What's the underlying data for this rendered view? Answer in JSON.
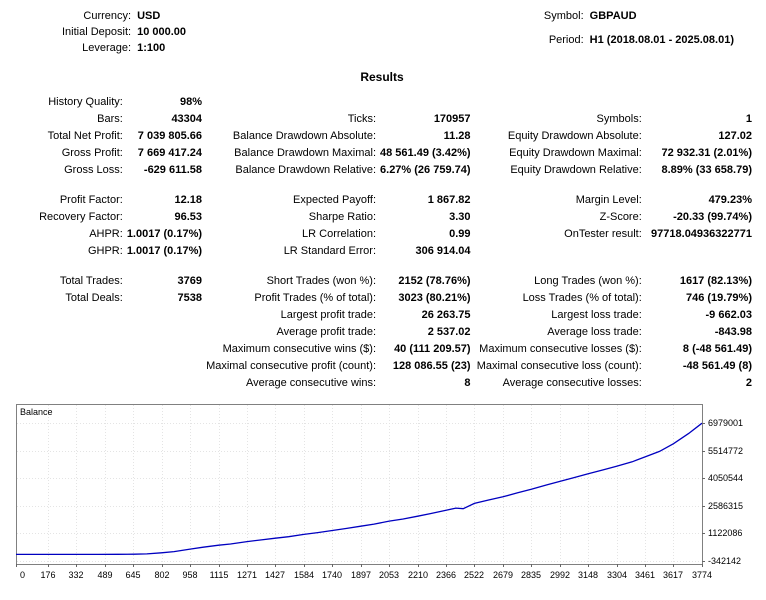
{
  "header": {
    "left": [
      {
        "label": "Currency:",
        "value": "USD"
      },
      {
        "label": "Initial Deposit:",
        "value": "10 000.00"
      },
      {
        "label": "Leverage:",
        "value": "1:100"
      }
    ],
    "right": [
      {
        "label": "Symbol:",
        "value": "GBPAUD"
      },
      {
        "label": "Period:",
        "value": "H1 (2018.08.01 - 2025.08.01)"
      }
    ]
  },
  "results": {
    "title": "Results",
    "rows": [
      [
        {
          "label": "History Quality:",
          "value": "98%"
        },
        null,
        null
      ],
      [
        {
          "label": "Bars:",
          "value": "43304"
        },
        {
          "label": "Ticks:",
          "value": "170957"
        },
        {
          "label": "Symbols:",
          "value": "1"
        }
      ],
      [
        {
          "label": "Total Net Profit:",
          "value": "7 039 805.66"
        },
        {
          "label": "Balance Drawdown Absolute:",
          "value": "11.28"
        },
        {
          "label": "Equity Drawdown Absolute:",
          "value": "127.02"
        }
      ],
      [
        {
          "label": "Gross Profit:",
          "value": "7 669 417.24"
        },
        {
          "label": "Balance Drawdown Maximal:",
          "value": "48 561.49 (3.42%)"
        },
        {
          "label": "Equity Drawdown Maximal:",
          "value": "72 932.31 (2.01%)"
        }
      ],
      [
        {
          "label": "Gross Loss:",
          "value": "-629 611.58"
        },
        {
          "label": "Balance Drawdown Relative:",
          "value": "6.27% (26 759.74)"
        },
        {
          "label": "Equity Drawdown Relative:",
          "value": "8.89% (33 658.79)"
        }
      ],
      "spacer",
      [
        {
          "label": "Profit Factor:",
          "value": "12.18"
        },
        {
          "label": "Expected Payoff:",
          "value": "1 867.82"
        },
        {
          "label": "Margin Level:",
          "value": "479.23%"
        }
      ],
      [
        {
          "label": "Recovery Factor:",
          "value": "96.53"
        },
        {
          "label": "Sharpe Ratio:",
          "value": "3.30"
        },
        {
          "label": "Z-Score:",
          "value": "-20.33 (99.74%)"
        }
      ],
      [
        {
          "label": "AHPR:",
          "value": "1.0017 (0.17%)"
        },
        {
          "label": "LR Correlation:",
          "value": "0.99"
        },
        {
          "label": "OnTester result:",
          "value": "97718.04936322771"
        }
      ],
      [
        {
          "label": "GHPR:",
          "value": "1.0017 (0.17%)"
        },
        {
          "label": "LR Standard Error:",
          "value": "306 914.04"
        },
        null
      ],
      "spacer",
      [
        {
          "label": "Total Trades:",
          "value": "3769"
        },
        {
          "label": "Short Trades (won %):",
          "value": "2152 (78.76%)"
        },
        {
          "label": "Long Trades (won %):",
          "value": "1617 (82.13%)"
        }
      ],
      [
        {
          "label": "Total Deals:",
          "value": "7538"
        },
        {
          "label": "Profit Trades (% of total):",
          "value": "3023 (80.21%)"
        },
        {
          "label": "Loss Trades (% of total):",
          "value": "746 (19.79%)"
        }
      ],
      [
        null,
        {
          "label": "Largest profit trade:",
          "value": "26 263.75"
        },
        {
          "label": "Largest loss trade:",
          "value": "-9 662.03"
        }
      ],
      [
        null,
        {
          "label": "Average profit trade:",
          "value": "2 537.02"
        },
        {
          "label": "Average loss trade:",
          "value": "-843.98"
        }
      ],
      [
        null,
        {
          "label": "Maximum consecutive wins ($):",
          "value": "40 (111 209.57)"
        },
        {
          "label": "Maximum consecutive losses ($):",
          "value": "8 (-48 561.49)"
        }
      ],
      [
        null,
        {
          "label": "Maximal consecutive profit (count):",
          "value": "128 086.55 (23)"
        },
        {
          "label": "Maximal consecutive loss (count):",
          "value": "-48 561.49 (8)"
        }
      ],
      [
        null,
        {
          "label": "Average consecutive wins:",
          "value": "8"
        },
        {
          "label": "Average consecutive losses:",
          "value": "2"
        }
      ]
    ]
  },
  "chart_data": {
    "type": "line",
    "title": "Balance",
    "line_color": "#0000C0",
    "x_range": [
      0,
      3774
    ],
    "y_range": [
      -500000,
      8000000
    ],
    "x_ticks": [
      0,
      176,
      332,
      489,
      645,
      802,
      958,
      1115,
      1271,
      1427,
      1584,
      1740,
      1897,
      2053,
      2210,
      2366,
      2522,
      2679,
      2835,
      2992,
      3148,
      3304,
      3461,
      3617,
      3774
    ],
    "y_ticks": [
      6979001,
      5514772,
      4050544,
      2586315,
      1122086,
      -342142
    ],
    "series": [
      {
        "name": "Balance",
        "points": [
          [
            0,
            10000
          ],
          [
            150,
            10000
          ],
          [
            300,
            10600
          ],
          [
            450,
            11500
          ],
          [
            560,
            13000
          ],
          [
            650,
            18000
          ],
          [
            720,
            35000
          ],
          [
            800,
            95000
          ],
          [
            870,
            160000
          ],
          [
            958,
            290000
          ],
          [
            1030,
            390000
          ],
          [
            1115,
            500000
          ],
          [
            1180,
            560000
          ],
          [
            1271,
            690000
          ],
          [
            1350,
            780000
          ],
          [
            1427,
            870000
          ],
          [
            1500,
            950000
          ],
          [
            1584,
            1070000
          ],
          [
            1660,
            1170000
          ],
          [
            1740,
            1280000
          ],
          [
            1820,
            1390000
          ],
          [
            1897,
            1510000
          ],
          [
            1970,
            1620000
          ],
          [
            2053,
            1780000
          ],
          [
            2130,
            1890000
          ],
          [
            2210,
            2040000
          ],
          [
            2280,
            2180000
          ],
          [
            2366,
            2360000
          ],
          [
            2420,
            2470000
          ],
          [
            2460,
            2440000
          ],
          [
            2522,
            2720000
          ],
          [
            2600,
            2900000
          ],
          [
            2679,
            3070000
          ],
          [
            2760,
            3280000
          ],
          [
            2835,
            3470000
          ],
          [
            2920,
            3700000
          ],
          [
            2992,
            3890000
          ],
          [
            3070,
            4090000
          ],
          [
            3148,
            4290000
          ],
          [
            3230,
            4500000
          ],
          [
            3304,
            4690000
          ],
          [
            3390,
            4930000
          ],
          [
            3461,
            5190000
          ],
          [
            3540,
            5480000
          ],
          [
            3617,
            5890000
          ],
          [
            3700,
            6430000
          ],
          [
            3774,
            6979001
          ]
        ]
      }
    ]
  }
}
